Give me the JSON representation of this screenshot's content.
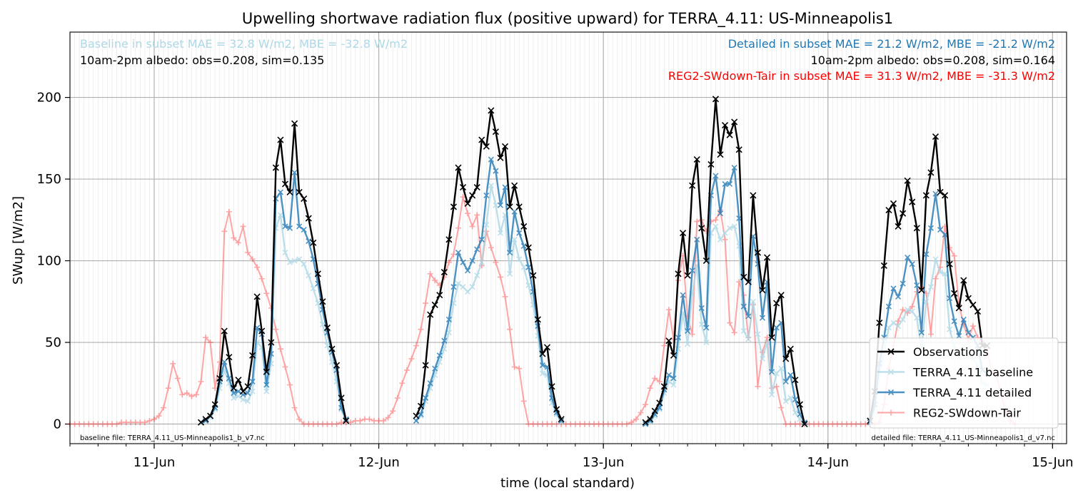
{
  "chart_data": {
    "type": "line",
    "title": "Upwelling shortwave radiation flux (positive upward) for TERRA_4.11: US-Minneapolis1",
    "xlabel": "time (local standard)",
    "ylabel": "SWup [W/m2]",
    "xlim": [
      "2016-06-10T15:00",
      "2016-06-15T01:30"
    ],
    "ylim": [
      -12,
      240
    ],
    "yticks": [
      0,
      50,
      100,
      150,
      200
    ],
    "xticks": [
      {
        "label": "11-Jun",
        "day": 11
      },
      {
        "label": "12-Jun",
        "day": 12
      },
      {
        "label": "13-Jun",
        "day": 13
      },
      {
        "label": "14-Jun",
        "day": 14
      },
      {
        "label": "15-Jun",
        "day": 15
      }
    ],
    "grid": true,
    "legend": {
      "position": "lower-right",
      "entries": [
        "Observations",
        "TERRA_4.11 baseline",
        "TERRA_4.11 detailed",
        "REG2-SWdown-Tair"
      ]
    },
    "annotations": {
      "top_left_baseline": "Baseline in subset MAE = 32.8 W/m2, MBE = -32.8 W/m2",
      "top_left_albedo": "10am-2pm albedo: obs=0.208, sim=0.135",
      "top_right_detailed": "Detailed in subset MAE = 21.2 W/m2, MBE = -21.2 W/m2",
      "top_right_albedo": "10am-2pm albedo: obs=0.208, sim=0.164",
      "top_right_reg2": "REG2-SWdown-Tair in subset MAE = 31.3 W/m2, MBE = -31.3 W/m2",
      "bottom_left_file": "baseline file: TERRA_4.11_US-Minneapolis1_b_v7.nc",
      "bottom_right_file": "detailed file: TERRA_4.11_US-Minneapolis1_d_v7.nc"
    },
    "colors": {
      "obs": "#000000",
      "baseline": "#add8e6",
      "detailed": "#1f77b4",
      "reg2": "#ff0000",
      "annot_baseline": "#add8e6",
      "annot_detailed": "#1f77b4",
      "annot_reg2": "#ff0000"
    },
    "series": [
      {
        "name": "Observations",
        "marker": "x",
        "x_start": "2016-06-11T05:00",
        "step_hours": 0.5,
        "segments": [
          {
            "start": "2016-06-11T05:00",
            "values": [
              1,
              3,
              5,
              12,
              28,
              57,
              41,
              22,
              27,
              20,
              23,
              42,
              78,
              57,
              32,
              50,
              157,
              174,
              147,
              142,
              184,
              142,
              138,
              126,
              111,
              92,
              75,
              59,
              46,
              36,
              16,
              2
            ]
          },
          {
            "start": "2016-06-12T04:00",
            "values": [
              5,
              11,
              36,
              67,
              73,
              79,
              93,
              113,
              133,
              157,
              145,
              135,
              140,
              145,
              174,
              170,
              192,
              179,
              163,
              170,
              133,
              146,
              133,
              121,
              108,
              91,
              64,
              43,
              47,
              23,
              9,
              3
            ]
          },
          {
            "start": "2016-06-13T04:30",
            "values": [
              1,
              3,
              8,
              13,
              23,
              51,
              42,
              92,
              117,
              91,
              146,
              162,
              120,
              100,
              159,
              199,
              165,
              183,
              177,
              185,
              168,
              90,
              87,
              140,
              105,
              82,
              102,
              53,
              74,
              79,
              40,
              46,
              27,
              12,
              0
            ]
          },
          {
            "start": "2016-06-14T04:30",
            "values": [
              2,
              20,
              62,
              97,
              131,
              135,
              121,
              129,
              149,
              136,
              120,
              82,
              140,
              154,
              176,
              142,
              140,
              98,
              80,
              71,
              88,
              77,
              73,
              69,
              48,
              48
            ]
          }
        ]
      },
      {
        "name": "TERRA_4.11 baseline",
        "marker": "x",
        "segments": [
          {
            "start": "2016-06-11T05:00",
            "values": [
              1,
              2,
              4,
              9,
              22,
              33,
              25,
              16,
              17,
              15,
              14,
              20,
              50,
              47,
              20,
              37,
              120,
              128,
              105,
              99,
              100,
              101,
              98,
              91,
              83,
              74,
              61,
              48,
              38,
              26,
              9,
              2
            ]
          },
          {
            "start": "2016-06-12T04:00",
            "values": [
              2,
              5,
              14,
              22,
              30,
              38,
              46,
              56,
              74,
              86,
              84,
              81,
              84,
              91,
              99,
              122,
              146,
              134,
              117,
              128,
              92,
              113,
              101,
              96,
              85,
              73,
              54,
              31,
              30,
              13,
              6,
              1
            ]
          },
          {
            "start": "2016-06-13T04:30",
            "values": [
              0,
              1,
              5,
              9,
              19,
              26,
              24,
              46,
              68,
              49,
              80,
              97,
              61,
              50,
              117,
              121,
              113,
              117,
              120,
              121,
              109,
              57,
              52,
              75,
              55,
              40,
              50,
              18,
              31,
              34,
              14,
              16,
              7,
              3,
              0
            ]
          },
          {
            "start": "2016-06-14T04:30",
            "values": [
              1,
              10,
              31,
              44,
              59,
              62,
              60,
              64,
              70,
              69,
              65,
              46,
              75,
              84,
              101,
              93,
              92,
              58,
              48,
              41,
              48,
              42,
              40,
              36,
              25,
              24
            ]
          }
        ]
      },
      {
        "name": "TERRA_4.11 detailed",
        "marker": "x",
        "segments": [
          {
            "start": "2016-06-11T05:00",
            "values": [
              1,
              2,
              5,
              10,
              26,
              38,
              28,
              19,
              20,
              18,
              19,
              26,
              59,
              55,
              24,
              43,
              138,
              142,
              121,
              120,
              154,
              121,
              119,
              112,
              101,
              86,
              70,
              56,
              44,
              33,
              10,
              3
            ]
          },
          {
            "start": "2016-06-12T04:00",
            "values": [
              2,
              6,
              16,
              25,
              34,
              42,
              51,
              64,
              84,
              105,
              99,
              94,
              100,
              107,
              113,
              140,
              162,
              155,
              134,
              145,
              105,
              130,
              117,
              109,
              96,
              81,
              60,
              36,
              35,
              16,
              7,
              2
            ]
          },
          {
            "start": "2016-06-13T04:30",
            "values": [
              0,
              2,
              6,
              10,
              21,
              30,
              28,
              53,
              79,
              57,
              94,
              113,
              71,
              59,
              140,
              152,
              129,
              147,
              147,
              157,
              126,
              72,
              66,
              115,
              98,
              65,
              87,
              32,
              59,
              62,
              26,
              30,
              15,
              6,
              1
            ]
          },
          {
            "start": "2016-06-14T04:30",
            "values": [
              1,
              12,
              37,
              53,
              72,
              83,
              78,
              86,
              102,
              98,
              85,
              56,
              104,
              120,
              141,
              119,
              116,
              77,
              63,
              54,
              64,
              56,
              53,
              48,
              33,
              31
            ]
          }
        ]
      },
      {
        "name": "REG2-SWdown-Tair",
        "marker": "+",
        "segments": [
          {
            "start": "2016-06-10T15:00",
            "values": [
              0,
              0,
              0,
              0,
              0,
              0,
              0,
              0,
              0,
              0,
              0,
              1,
              1,
              1,
              1,
              1,
              1,
              2,
              3,
              5,
              10,
              22,
              37,
              28,
              18,
              19,
              17,
              18,
              26,
              53,
              50,
              22,
              38,
              118,
              130,
              114,
              111,
              121,
              105,
              101,
              96,
              89,
              80,
              71,
              58,
              46,
              35,
              24,
              10,
              3,
              0,
              0,
              0,
              0,
              0,
              0,
              0,
              0,
              1,
              1,
              1,
              2,
              2,
              3,
              3,
              2,
              2,
              2,
              4,
              8,
              16,
              25,
              33,
              40,
              48,
              58,
              74,
              92,
              88,
              85,
              90,
              99,
              104,
              120,
              139,
              129,
              121,
              128,
              97,
              118,
              108,
              99,
              90,
              78,
              58,
              35,
              34,
              14,
              0,
              0,
              0,
              0,
              0,
              0,
              0,
              0,
              0,
              0,
              0,
              0,
              0,
              0,
              0,
              0,
              0,
              0,
              0,
              0,
              0,
              0,
              1,
              3,
              7,
              12,
              22,
              28,
              26,
              48,
              70,
              52,
              88,
              103,
              66,
              55,
              124,
              125,
              118,
              124,
              125,
              131,
              113,
              62,
              56,
              87,
              79,
              53,
              73,
              23,
              44,
              53,
              22,
              23,
              10,
              0,
              0,
              0,
              0,
              0,
              0,
              0,
              0,
              0,
              0,
              0,
              0,
              0,
              0,
              0,
              0,
              0,
              0,
              0,
              0,
              1,
              12,
              34,
              48,
              63,
              70,
              68,
              72,
              81,
              84,
              80,
              55,
              89,
              96,
              121,
              108,
              103,
              73,
              61,
              52,
              60,
              53,
              51,
              46,
              32,
              30,
              18,
              8,
              2,
              0
            ]
          }
        ]
      }
    ]
  }
}
